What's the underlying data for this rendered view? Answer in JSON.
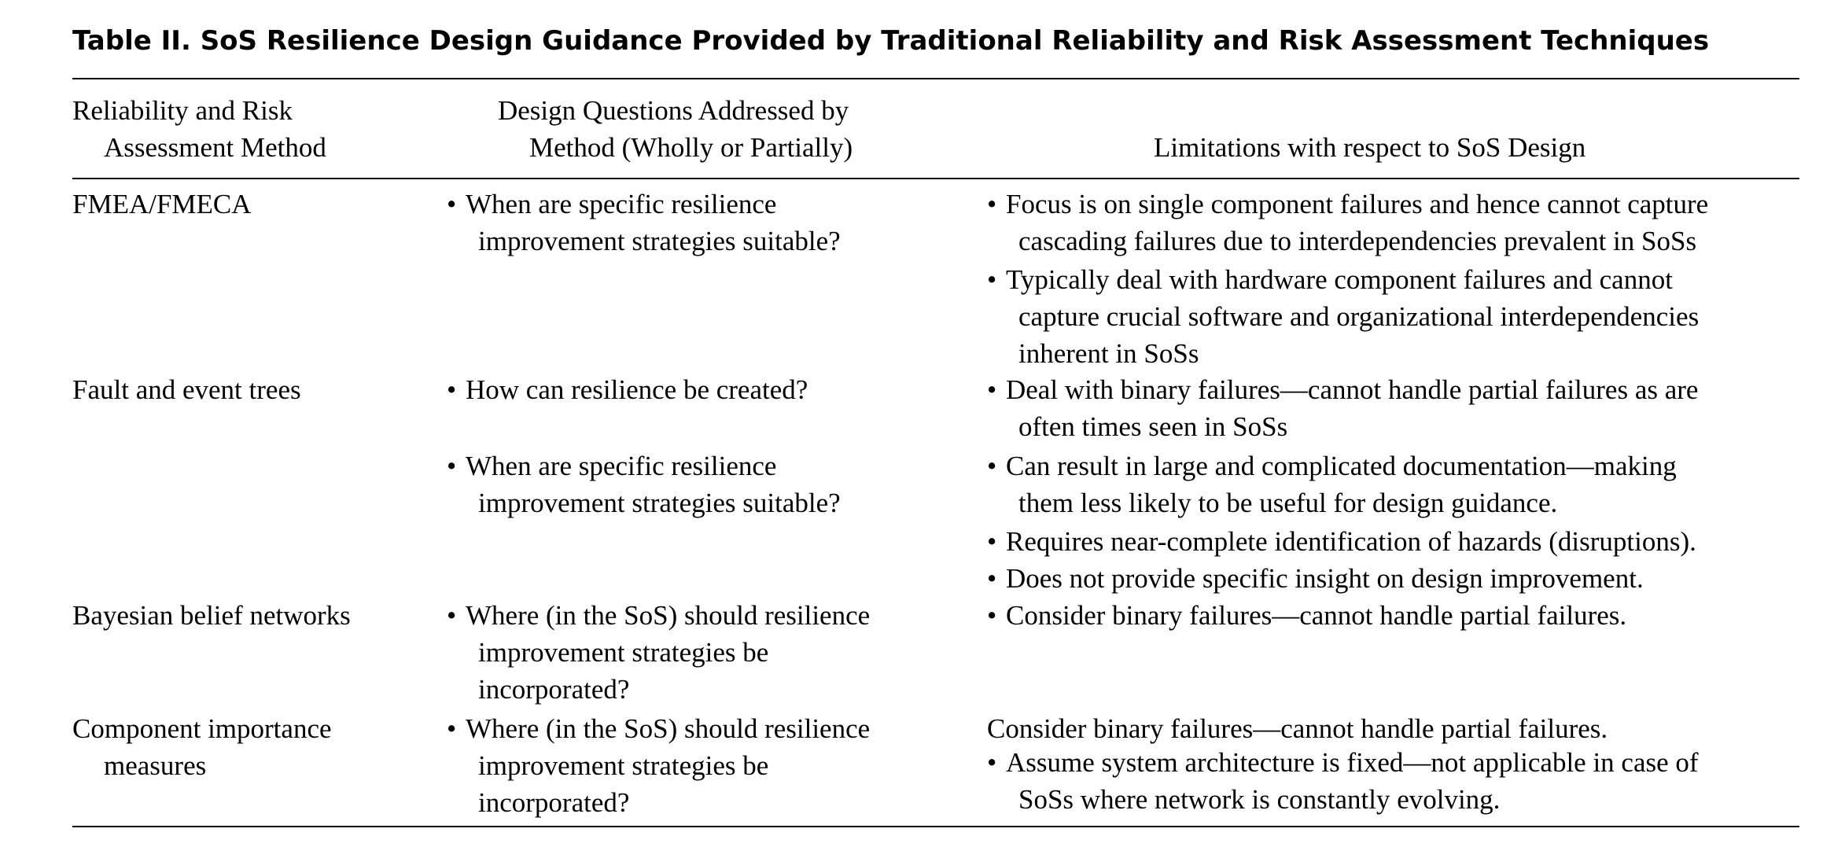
{
  "caption": "Table II.  SoS Resilience Design Guidance Provided by Traditional Reliability and Risk Assessment Techniques",
  "headers": {
    "method": [
      "Reliability and Risk",
      "Assessment Method"
    ],
    "questions": [
      "Design Questions Addressed by",
      "Method (Wholly or Partially)"
    ],
    "limitations": "Limitations with respect to SoS Design"
  },
  "bullet_glyph": "•",
  "rows": [
    {
      "method": [
        "FMEA/FMECA"
      ],
      "questions": [
        [
          "When are specific resilience",
          "improvement strategies suitable?"
        ]
      ],
      "limitations": [
        [
          "Focus is on single component failures and hence cannot capture",
          "cascading failures due to interdependencies prevalent in SoSs"
        ],
        [
          "Typically deal with hardware component failures and cannot",
          "capture crucial software and organizational interdependencies",
          "inherent in SoSs"
        ]
      ]
    },
    {
      "method": [
        "Fault and event trees"
      ],
      "questions": [
        [
          "How can resilience be created?"
        ],
        [
          "When are specific resilience",
          "improvement strategies suitable?"
        ]
      ],
      "limitations": [
        [
          "Deal with binary failures—cannot handle partial failures as are",
          "often times seen in SoSs"
        ],
        [
          "Can result in large and complicated documentation—making",
          "them less likely to be useful for design guidance."
        ],
        [
          "Requires near-complete identification of hazards (disruptions)."
        ],
        [
          "Does not provide specific insight on design improvement."
        ]
      ]
    },
    {
      "method": [
        "Bayesian belief networks"
      ],
      "questions": [
        [
          "Where (in the SoS) should resilience",
          "improvement strategies be",
          "incorporated?"
        ]
      ],
      "limitations": [
        [
          "Consider binary failures—cannot handle partial failures."
        ]
      ]
    },
    {
      "method": [
        "Component importance",
        "measures"
      ],
      "questions": [
        [
          "Where (in the SoS) should resilience",
          "improvement strategies be",
          "incorporated?"
        ]
      ],
      "limitations_plain": "Consider binary failures—cannot handle partial failures.",
      "limitations": [
        [
          "Assume system architecture is fixed—not applicable in case of",
          "SoSs where network is constantly evolving."
        ]
      ]
    }
  ]
}
